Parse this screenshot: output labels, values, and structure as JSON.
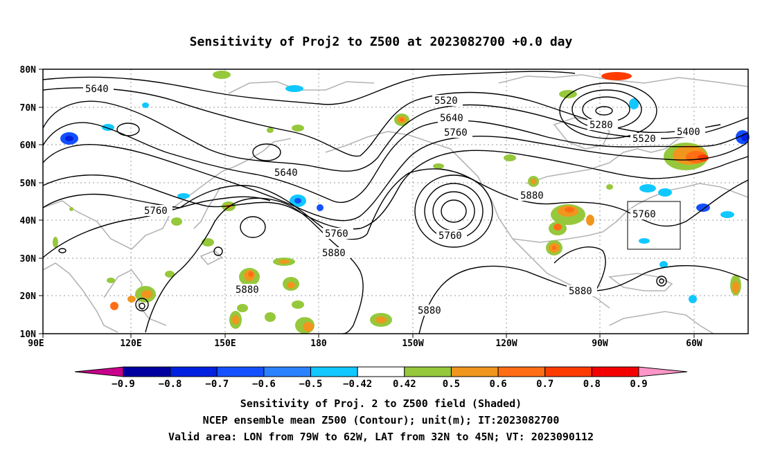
{
  "title": "Sensitivity of Proj2 to Z500 at 2023082700 +0.0 day",
  "lat_labels": [
    "80N",
    "70N",
    "60N",
    "50N",
    "40N",
    "30N",
    "20N",
    "10N"
  ],
  "lon_labels": [
    "90E",
    "120E",
    "150E",
    "180",
    "150W",
    "120W",
    "90W",
    "60W"
  ],
  "contour_labels": [
    "5640",
    "5520",
    "5640",
    "5760",
    "5280",
    "5400",
    "5520",
    "5640",
    "5760",
    "5760",
    "5880",
    "5760",
    "5880",
    "5760",
    "5880",
    "5880",
    "5880"
  ],
  "colorbar": {
    "colors": [
      "#c8008c",
      "#0000a0",
      "#0020e0",
      "#1450ff",
      "#2a82ff",
      "#10c8ff",
      "#ffffff",
      "#96c83c",
      "#f0961e",
      "#ff6e14",
      "#ff3c00",
      "#f50000",
      "#ff96c8"
    ],
    "labels": [
      "-0.9",
      "-0.8",
      "-0.7",
      "-0.6",
      "-0.5",
      "-0.42",
      "0.42",
      "0.5",
      "0.6",
      "0.7",
      "0.8",
      "0.9"
    ]
  },
  "captions": [
    "Sensitivity of Proj. 2 to Z500 field (Shaded)",
    "NCEP ensemble mean Z500 (Contour); unit(m); IT:2023082700",
    "Valid area: LON from 79W to 62W, LAT from 32N to 45N; VT: 2023090112"
  ]
}
